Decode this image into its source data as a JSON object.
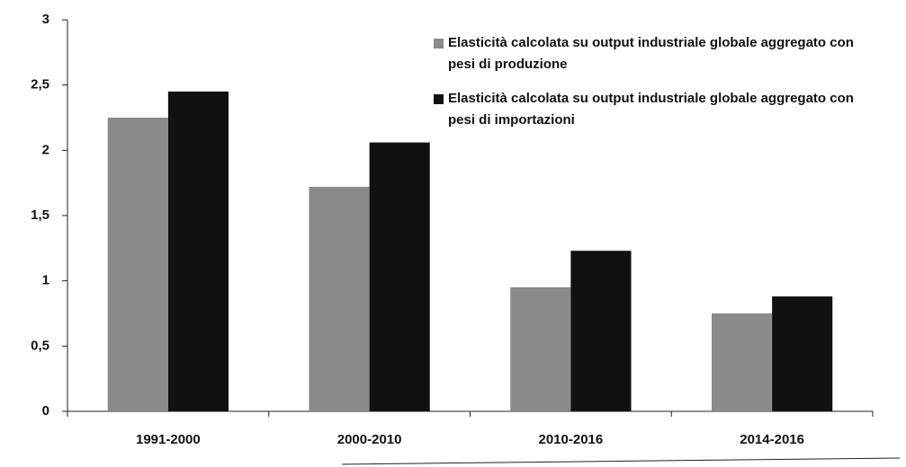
{
  "chart_data": {
    "type": "bar",
    "categories": [
      "1991-2000",
      "2000-2010",
      "2010-2016",
      "2014-2016"
    ],
    "series": [
      {
        "name": "Elasticità calcolata su output industriale globale aggregato con pesi di produzione",
        "color": "#8a8a8a",
        "values": [
          2.25,
          1.72,
          0.95,
          0.75
        ]
      },
      {
        "name": "Elasticità calcolata su output industriale globale aggregato con pesi di importazioni",
        "color": "#111111",
        "values": [
          2.45,
          2.06,
          1.23,
          0.88
        ]
      }
    ],
    "ylim": [
      0,
      3
    ],
    "yticks": [
      0,
      {
        "value": 0.5,
        "label": "0,5"
      },
      1,
      {
        "value": 1.5,
        "label": "1,5"
      },
      2,
      {
        "value": 2.5,
        "label": "2,5"
      },
      3
    ],
    "legend": "upper right",
    "grid": false
  }
}
